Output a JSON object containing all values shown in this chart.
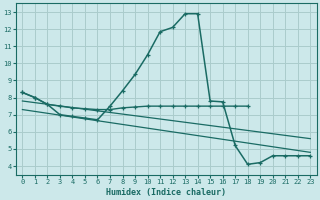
{
  "bg_color": "#cce8ea",
  "grid_color": "#aacccc",
  "line_color": "#1a6b64",
  "xlabel": "Humidex (Indice chaleur)",
  "xlim": [
    -0.5,
    23.5
  ],
  "ylim": [
    3.5,
    13.5
  ],
  "xticks": [
    0,
    1,
    2,
    3,
    4,
    5,
    6,
    7,
    8,
    9,
    10,
    11,
    12,
    13,
    14,
    15,
    16,
    17,
    18,
    19,
    20,
    21,
    22,
    23
  ],
  "yticks": [
    4,
    5,
    6,
    7,
    8,
    9,
    10,
    11,
    12,
    13
  ],
  "curve_main_x": [
    0,
    1,
    2,
    3,
    4,
    5,
    6,
    7,
    8,
    9,
    10,
    11,
    12,
    13,
    14,
    15,
    16,
    17,
    18,
    19,
    20,
    21,
    22,
    23
  ],
  "curve_main_y": [
    8.3,
    8.0,
    7.6,
    7.0,
    6.9,
    6.8,
    6.7,
    7.5,
    8.4,
    9.35,
    10.5,
    11.85,
    12.1,
    12.9,
    12.9,
    7.8,
    7.75,
    5.2,
    4.1,
    4.2,
    4.6,
    4.6,
    4.6,
    4.6
  ],
  "curve_flat_x": [
    0,
    1,
    2,
    3,
    4,
    5,
    6,
    7,
    8,
    9,
    10,
    11,
    12,
    13,
    14,
    15,
    16,
    17,
    18
  ],
  "curve_flat_y": [
    8.3,
    8.0,
    7.6,
    7.5,
    7.4,
    7.35,
    7.3,
    7.3,
    7.4,
    7.45,
    7.5,
    7.5,
    7.5,
    7.5,
    7.5,
    7.5,
    7.5,
    7.5,
    7.5
  ],
  "trend1_x": [
    0,
    23
  ],
  "trend1_y": [
    7.8,
    5.6
  ],
  "trend2_x": [
    0,
    23
  ],
  "trend2_y": [
    7.3,
    4.8
  ]
}
